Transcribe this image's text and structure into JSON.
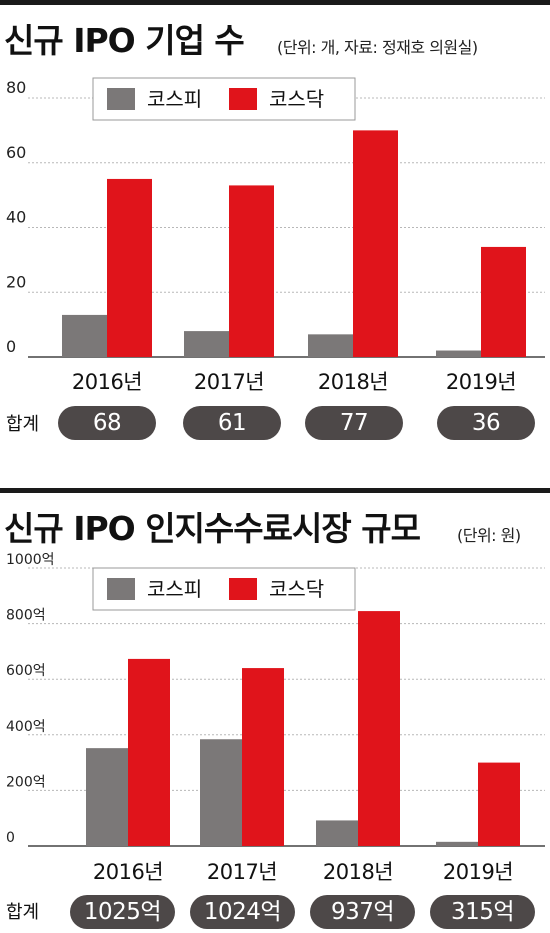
{
  "charts": [
    {
      "title": "신규 IPO 기업 수",
      "unit_note": "(단위: 개, 자료: 정재호 의원실)",
      "totals_label": "합계",
      "totals": [
        "68",
        "61",
        "77",
        "36"
      ]
    },
    {
      "title": "신규 IPO 인지수수료시장 규모",
      "unit_note": "(단위: 원)",
      "totals_label": "합계",
      "totals": [
        "1025억",
        "1024억",
        "937억",
        "315억"
      ]
    }
  ],
  "colors": {
    "kospi": "#7b7878",
    "kosdaq": "#e0141b",
    "pill": "#4d4848"
  },
  "chart_data": [
    {
      "type": "bar",
      "title": "신규 IPO 기업 수",
      "categories": [
        "2016년",
        "2017년",
        "2018년",
        "2019년"
      ],
      "series": [
        {
          "name": "코스피",
          "values": [
            13,
            8,
            7,
            2
          ]
        },
        {
          "name": "코스닥",
          "values": [
            55,
            53,
            70,
            34
          ]
        }
      ],
      "ylim": [
        0,
        80
      ],
      "yticks": [
        "0",
        "20",
        "40",
        "60",
        "80"
      ],
      "legend": "top",
      "grid": true
    },
    {
      "type": "bar",
      "title": "신규 IPO 인지수수료시장 규모",
      "categories": [
        "2016년",
        "2017년",
        "2018년",
        "2019년"
      ],
      "series": [
        {
          "name": "코스피",
          "values": [
            352,
            384,
            92,
            15
          ]
        },
        {
          "name": "코스닥",
          "values": [
            673,
            640,
            845,
            300
          ]
        }
      ],
      "ylim": [
        0,
        1000
      ],
      "yticks": [
        "0",
        "200억",
        "400억",
        "600억",
        "800억",
        "1000억"
      ],
      "legend": "top",
      "grid": true
    }
  ]
}
